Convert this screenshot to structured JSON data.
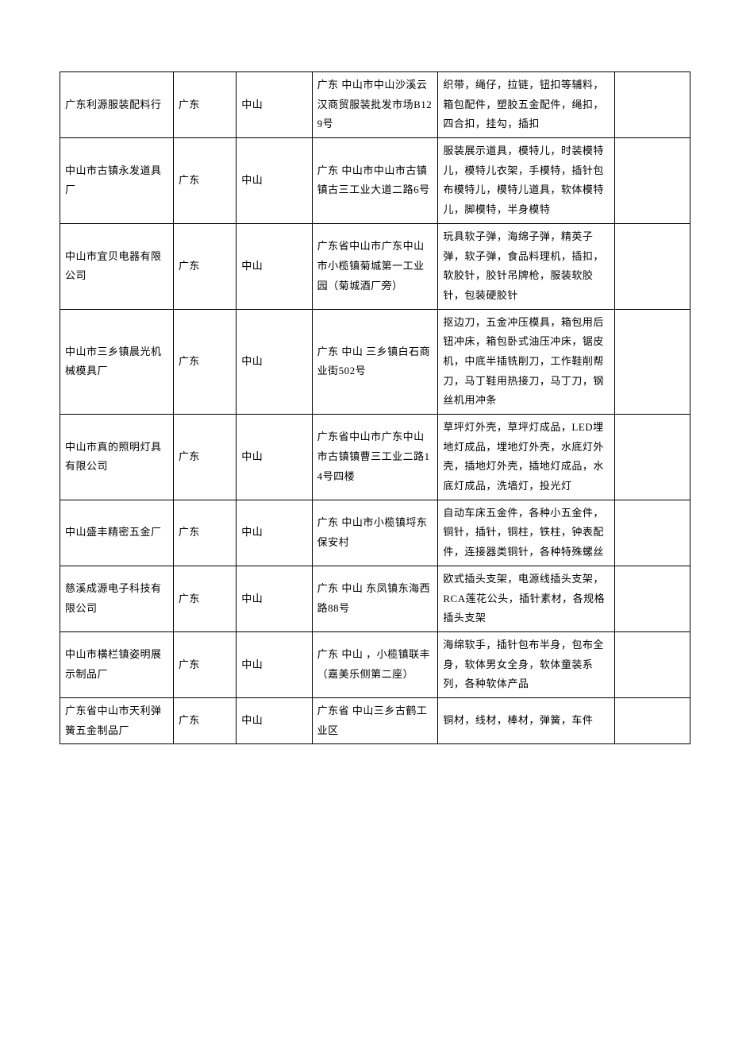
{
  "table": {
    "background_color": "#ffffff",
    "border_color": "#000000",
    "text_color": "#000000",
    "font_size": 13,
    "columns": [
      "company",
      "province",
      "city",
      "address",
      "products",
      "empty"
    ],
    "column_widths_pct": [
      18,
      10,
      12,
      20,
      28,
      12
    ],
    "rows": [
      {
        "company": "广东利源服装配料行",
        "province": "广东",
        "city": "中山",
        "address": "广东 中山市中山沙溪云汉商贸服装批发市场B129号",
        "products": "织带，绳仔，拉链，钮扣等辅料，箱包配件，塑胶五金配件，绳扣，四合扣，挂勾，插扣",
        "empty": ""
      },
      {
        "company": "中山市古镇永发道具厂",
        "province": "广东",
        "city": "中山",
        "address": "广东 中山市中山市古镇镇古三工业大道二路6号",
        "products": "服装展示道具，模特儿，时装模特儿，模特儿衣架，手模特，插针包布模特儿，模特儿道具，软体模特儿，脚模特，半身模特",
        "empty": ""
      },
      {
        "company": "中山市宜贝电器有限公司",
        "province": "广东",
        "city": "中山",
        "address": "广东省中山市广东中山市小榄镇菊城第一工业园（菊城酒厂旁）",
        "products": "玩具软子弹，海绵子弹，精英子弹，软子弹，食品料理机，插扣，软胶针，胶针吊牌枪，服装软胶针，包装硬胶针",
        "empty": ""
      },
      {
        "company": "中山市三乡镇晨光机械模具厂",
        "province": "广东",
        "city": "中山",
        "address": "广东 中山 三乡镇白石商业街502号",
        "products": "抠边刀，五金冲压模具，箱包用后钮冲床，箱包卧式油压冲床，锯皮机，中底半插铣削刀，工作鞋削帮刀，马丁鞋用热接刀，马丁刀，钢丝机用冲条",
        "empty": ""
      },
      {
        "company": "中山市真的照明灯具有限公司",
        "province": "广东",
        "city": "中山",
        "address": "广东省中山市广东中山市古镇镇曹三工业二路14号四楼",
        "products": "草坪灯外壳，草坪灯成品，LED埋地灯成品，埋地灯外壳，水底灯外壳，插地灯外壳，插地灯成品，水底灯成品，洗墙灯，投光灯",
        "empty": ""
      },
      {
        "company": "中山盛丰精密五金厂",
        "province": "广东",
        "city": "中山",
        "address": "广东 中山市小榄镇埒东保安村",
        "products": "自动车床五金件，各种小五金件，铜针，插针，铜柱，铁柱，钟表配件，连接器类铜针，各种特殊螺丝",
        "empty": ""
      },
      {
        "company": "慈溪成源电子科技有限公司",
        "province": "广东",
        "city": "中山",
        "address": "广东 中山 东凤镇东海西路88号",
        "products": "欧式插头支架，电源线插头支架，RCA莲花公头，插针素材，各规格插头支架",
        "empty": ""
      },
      {
        "company": "中山市横栏镇姿明展示制品厂",
        "province": "广东",
        "city": "中山",
        "address": "广东 中山 ，小榄镇联丰（嘉美乐侧第二座）",
        "products": "海绵软手，插针包布半身，包布全身，软体男女全身，软体童装系列，各种软体产品",
        "empty": ""
      },
      {
        "company": "广东省中山市天利弹簧五金制品厂",
        "province": "广东",
        "city": "中山",
        "address": "广东省 中山三乡古鹤工业区",
        "products": "铜材，线材，棒材，弹簧，车件",
        "empty": ""
      }
    ]
  }
}
